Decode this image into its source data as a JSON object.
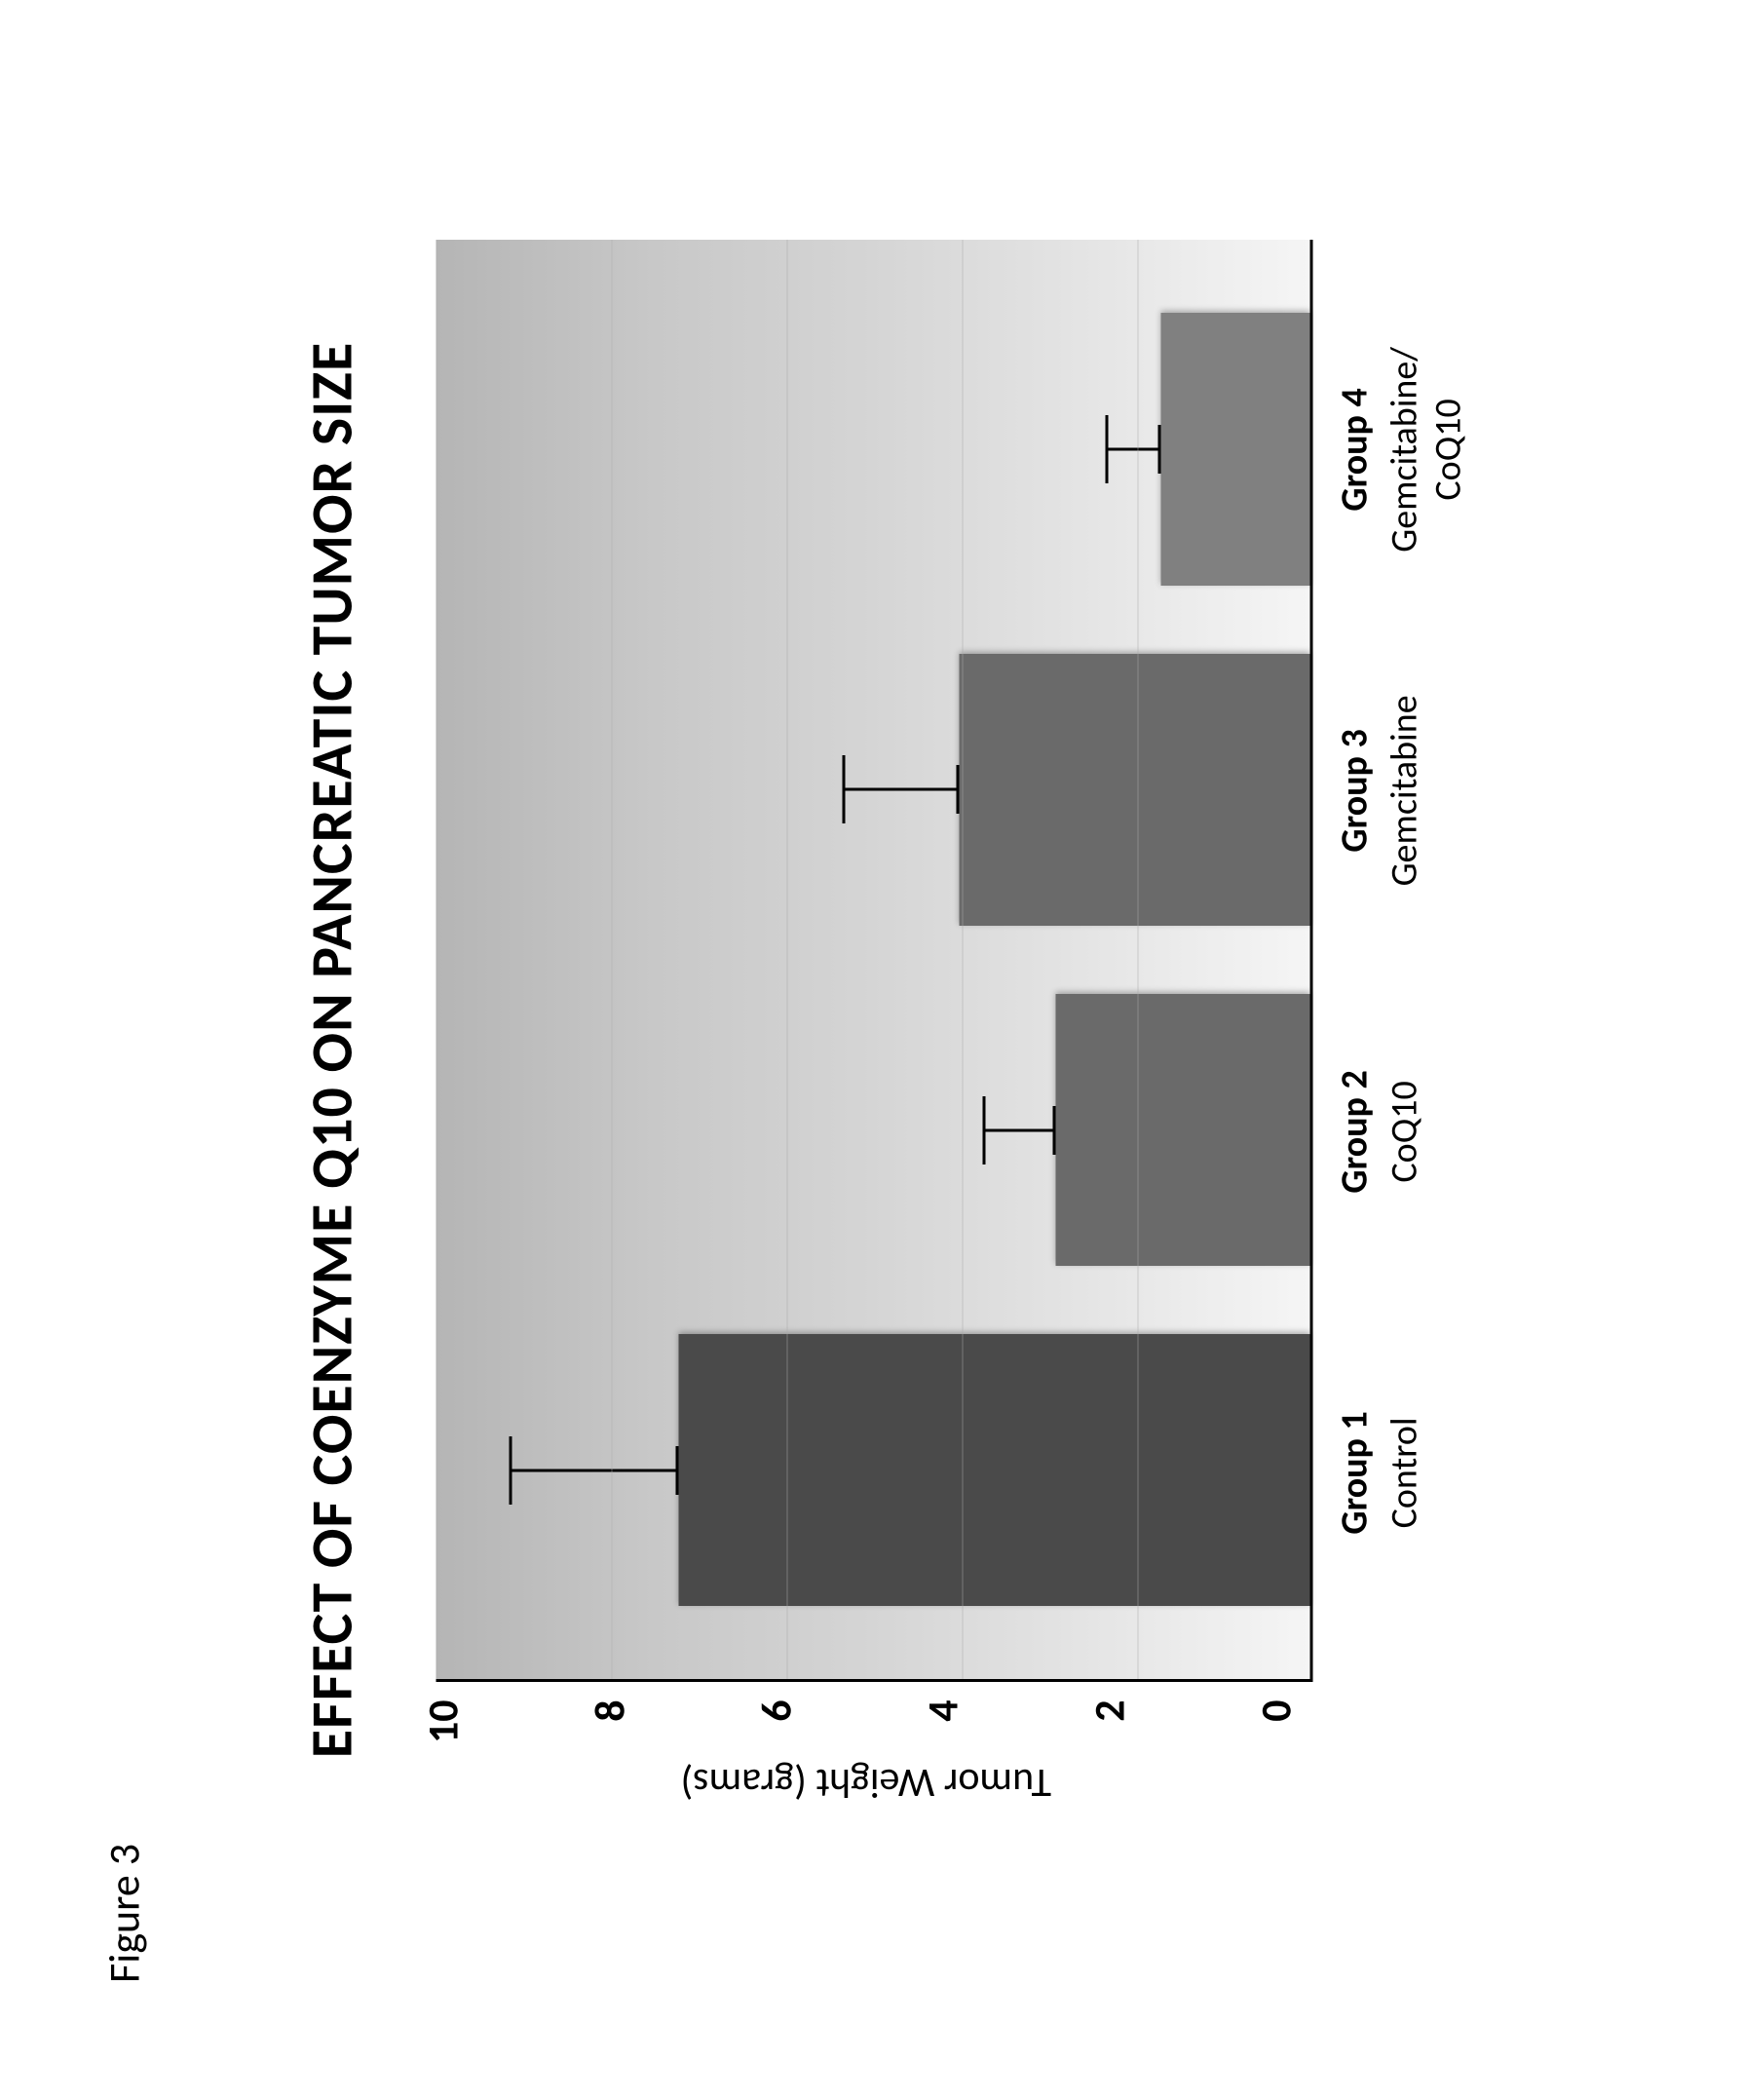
{
  "figure_label": "Figure 3",
  "chart": {
    "type": "bar",
    "title": "EFFECT OF COENZYME Q10 ON PANCREATIC  TUMOR SIZE",
    "ylabel": "Tumor Weight (grams)",
    "ylim": [
      0,
      10
    ],
    "ytick_step": 2,
    "yticks": [
      "10",
      "8",
      "6",
      "4",
      "2",
      "0"
    ],
    "background_gradient_top": "#b5b5b5",
    "background_gradient_bottom": "#f5f5f5",
    "axis_color": "#000000",
    "grid_color": "#aaaaaa",
    "bar_width_pct": 80,
    "title_fontsize": 60,
    "label_fontsize": 42,
    "tick_fontsize": 44,
    "xlabel_fontsize": 38,
    "bars": [
      {
        "group_bold": "Group 1",
        "group_label": "Control",
        "value": 7.2,
        "error": 1.9,
        "color": "#4a4a4a"
      },
      {
        "group_bold": "Group 2",
        "group_label": "CoQ10",
        "value": 2.9,
        "error": 0.8,
        "color": "#6a6a6a"
      },
      {
        "group_bold": "Group 3",
        "group_label": "Gemcitabine",
        "value": 4.0,
        "error": 1.3,
        "color": "#6a6a6a"
      },
      {
        "group_bold": "Group 4",
        "group_label": "Gemcitabine/\nCoQ10",
        "value": 1.7,
        "error": 0.6,
        "color": "#808080"
      }
    ]
  }
}
